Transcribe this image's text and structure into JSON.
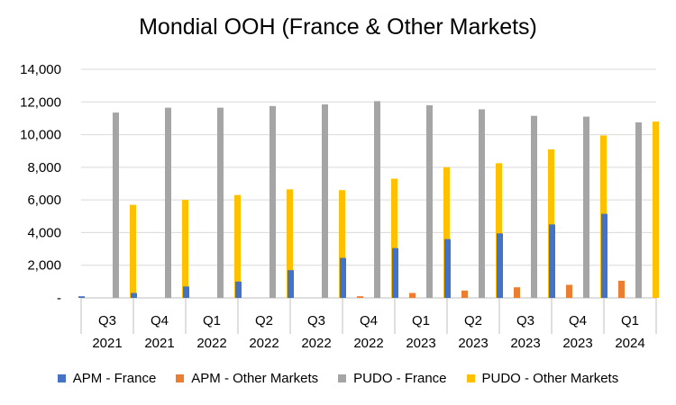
{
  "chart_data": {
    "type": "bar",
    "title": "Mondial OOH (France & Other Markets)",
    "categories": [
      {
        "top": "Q3",
        "bottom": "2021"
      },
      {
        "top": "Q4",
        "bottom": "2021"
      },
      {
        "top": "Q1",
        "bottom": "2022"
      },
      {
        "top": "Q2",
        "bottom": "2022"
      },
      {
        "top": "Q3",
        "bottom": "2022"
      },
      {
        "top": "Q4",
        "bottom": "2022"
      },
      {
        "top": "Q1",
        "bottom": "2023"
      },
      {
        "top": "Q2",
        "bottom": "2023"
      },
      {
        "top": "Q3",
        "bottom": "2023"
      },
      {
        "top": "Q4",
        "bottom": "2023"
      },
      {
        "top": "Q1",
        "bottom": "2024"
      }
    ],
    "series": [
      {
        "name": "APM - France",
        "color": "#4472C4",
        "values": [
          100,
          300,
          700,
          1000,
          1700,
          2450,
          3050,
          3600,
          3950,
          4500,
          5150
        ]
      },
      {
        "name": "APM - Other Markets",
        "color": "#ED7D31",
        "values": [
          0,
          0,
          0,
          0,
          0,
          100,
          300,
          450,
          650,
          800,
          1050
        ]
      },
      {
        "name": "PUDO - France",
        "color": "#A5A5A5",
        "values": [
          11350,
          11650,
          11650,
          11750,
          11850,
          12050,
          11800,
          11550,
          11150,
          11100,
          10750
        ]
      },
      {
        "name": "PUDO - Other Markets",
        "color": "#FFC000",
        "values": [
          5700,
          6000,
          6300,
          6650,
          6600,
          7300,
          8000,
          8250,
          9100,
          9950,
          10800
        ]
      }
    ],
    "ylim": [
      0,
      14000
    ],
    "yticks": [
      0,
      2000,
      4000,
      6000,
      8000,
      10000,
      12000,
      14000
    ],
    "ytick_labels": [
      "-",
      "2,000",
      "4,000",
      "6,000",
      "8,000",
      "10,000",
      "12,000",
      "14,000"
    ],
    "grid": true,
    "legend_position": "bottom"
  }
}
